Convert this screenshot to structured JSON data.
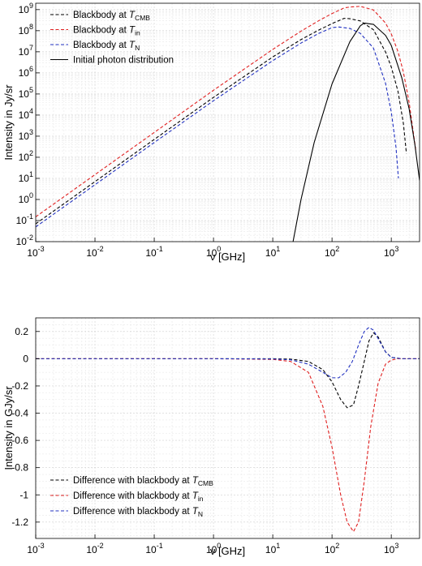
{
  "chart_data": [
    {
      "type": "line",
      "xscale": "log",
      "yscale": "log",
      "xlabel": "ν [GHz]",
      "ylabel": "Intensity in Jy/sr",
      "xlim": [
        0.001,
        3000
      ],
      "ylim": [
        0.01,
        2000000000
      ],
      "grid": true,
      "legend_position": "top-left",
      "xticks": [
        {
          "value": 0.001,
          "base": "10",
          "exp": "-3"
        },
        {
          "value": 0.01,
          "base": "10",
          "exp": "-2"
        },
        {
          "value": 0.1,
          "base": "10",
          "exp": "-1"
        },
        {
          "value": 1,
          "base": "10",
          "exp": "0"
        },
        {
          "value": 10,
          "base": "10",
          "exp": "1"
        },
        {
          "value": 100,
          "base": "10",
          "exp": "2"
        },
        {
          "value": 1000,
          "base": "10",
          "exp": "3"
        }
      ],
      "yticks": [
        {
          "value": 0.01,
          "base": "10",
          "exp": "-2"
        },
        {
          "value": 0.1,
          "base": "10",
          "exp": "-1"
        },
        {
          "value": 1,
          "base": "10",
          "exp": "0"
        },
        {
          "value": 10,
          "base": "10",
          "exp": "1"
        },
        {
          "value": 100,
          "base": "10",
          "exp": "2"
        },
        {
          "value": 1000,
          "base": "10",
          "exp": "3"
        },
        {
          "value": 10000,
          "base": "10",
          "exp": "4"
        },
        {
          "value": 100000,
          "base": "10",
          "exp": "5"
        },
        {
          "value": 1000000,
          "base": "10",
          "exp": "6"
        },
        {
          "value": 10000000,
          "base": "10",
          "exp": "7"
        },
        {
          "value": 100000000,
          "base": "10",
          "exp": "8"
        },
        {
          "value": 1000000000,
          "base": "10",
          "exp": "9"
        }
      ],
      "series": [
        {
          "name": "Blackbody at T_CMB",
          "legend_text": "Blackbody at ",
          "legend_italic": "T",
          "legend_sub": "CMB",
          "color": "#000000",
          "dash": true,
          "x": [
            0.001,
            0.01,
            0.1,
            1,
            10,
            30,
            60,
            100,
            160,
            200,
            300,
            500,
            800,
            1000,
            1300,
            1600,
            1800
          ],
          "y": [
            0.07,
            7,
            700,
            69000,
            5700000,
            38000000,
            108000000,
            217000000,
            385000000,
            370000000,
            290000000,
            111000000,
            9800000,
            1900000,
            130000,
            4000,
            150
          ]
        },
        {
          "name": "Blackbody at T_in",
          "legend_text": "Blackbody at ",
          "legend_italic": "T",
          "legend_sub": "in",
          "color": "#e02020",
          "dash": true,
          "x": [
            0.001,
            0.01,
            0.1,
            1,
            10,
            30,
            60,
            100,
            160,
            200,
            300,
            500,
            800,
            1000,
            1300,
            1600,
            2000,
            2600
          ],
          "y": [
            0.15,
            15,
            1500,
            150000,
            13000000,
            95000000,
            300000000,
            650000000,
            1200000000,
            1320000000,
            1430000000,
            960000000,
            230000000,
            70000000,
            10000000,
            1100000,
            40000,
            200
          ]
        },
        {
          "name": "Blackbody at T_N",
          "legend_text": "Blackbody at ",
          "legend_italic": "T",
          "legend_sub": "N",
          "color": "#2030c0",
          "dash": true,
          "x": [
            0.001,
            0.01,
            0.1,
            1,
            10,
            30,
            60,
            100,
            130,
            200,
            300,
            500,
            800,
            1000,
            1200,
            1320
          ],
          "y": [
            0.05,
            5,
            500,
            48000,
            3800000,
            26000000,
            75000000,
            140000000,
            150000000,
            128000000,
            75000000,
            15000000,
            320000,
            14000,
            300,
            10
          ]
        },
        {
          "name": "Initial photon distribution",
          "legend_text": "Initial photon distribution",
          "legend_italic": "",
          "legend_sub": "",
          "color": "#000000",
          "dash": false,
          "x": [
            22,
            30,
            50,
            100,
            200,
            300,
            350,
            500,
            800,
            1000,
            1500,
            2000,
            2500,
            3000
          ],
          "y": [
            0.01,
            1,
            500,
            300000,
            30000000,
            170000000,
            230000000,
            200000000,
            60000000,
            20000000,
            600000,
            20000,
            400,
            8
          ]
        }
      ]
    },
    {
      "type": "line",
      "xscale": "log",
      "yscale": "linear",
      "xlabel": "ν [GHz]",
      "ylabel": "Intensity in GJy/sr",
      "xlim": [
        0.001,
        3000
      ],
      "ylim": [
        -1.32,
        0.3
      ],
      "grid": true,
      "legend_position": "bottom-left",
      "xticks": [
        {
          "value": 0.001,
          "base": "10",
          "exp": "-3"
        },
        {
          "value": 0.01,
          "base": "10",
          "exp": "-2"
        },
        {
          "value": 0.1,
          "base": "10",
          "exp": "-1"
        },
        {
          "value": 1,
          "base": "10",
          "exp": "0"
        },
        {
          "value": 10,
          "base": "10",
          "exp": "1"
        },
        {
          "value": 100,
          "base": "10",
          "exp": "2"
        },
        {
          "value": 1000,
          "base": "10",
          "exp": "3"
        }
      ],
      "yticks": [
        {
          "value": 0.2,
          "label": "0.2"
        },
        {
          "value": 0,
          "label": "0"
        },
        {
          "value": -0.2,
          "label": "-0.2"
        },
        {
          "value": -0.4,
          "label": "-0.4"
        },
        {
          "value": -0.6,
          "label": "-0.6"
        },
        {
          "value": -0.8,
          "label": "-0.8"
        },
        {
          "value": -1,
          "label": "-1"
        },
        {
          "value": -1.2,
          "label": "-1.2"
        }
      ],
      "series": [
        {
          "name": "Difference with blackbody at T_CMB",
          "legend_text": "Difference with blackbody at ",
          "legend_italic": "T",
          "legend_sub": "CMB",
          "color": "#000000",
          "dash": true,
          "x": [
            0.001,
            1,
            10,
            20,
            40,
            70,
            100,
            140,
            180,
            230,
            280,
            350,
            420,
            500,
            600,
            800,
            1000,
            1500,
            3000
          ],
          "y": [
            0,
            0,
            0,
            -0.003,
            -0.02,
            -0.08,
            -0.17,
            -0.3,
            -0.36,
            -0.34,
            -0.2,
            -0.02,
            0.13,
            0.19,
            0.16,
            0.05,
            0.01,
            0,
            0
          ]
        },
        {
          "name": "Difference with blackbody at T_in",
          "legend_text": "Difference with blackbody at ",
          "legend_italic": "T",
          "legend_sub": "in",
          "color": "#e02020",
          "dash": true,
          "x": [
            0.001,
            1,
            10,
            20,
            40,
            70,
            100,
            140,
            180,
            230,
            280,
            350,
            450,
            600,
            800,
            1000,
            1300,
            1600,
            3000
          ],
          "y": [
            0,
            0,
            -0.005,
            -0.02,
            -0.1,
            -0.35,
            -0.65,
            -1.0,
            -1.2,
            -1.27,
            -1.2,
            -0.9,
            -0.5,
            -0.18,
            -0.04,
            -0.01,
            0,
            0,
            0
          ]
        },
        {
          "name": "Difference with blackbody at T_N",
          "legend_text": "Difference with blackbody at ",
          "legend_italic": "T",
          "legend_sub": "N",
          "color": "#2030c0",
          "dash": true,
          "x": [
            0.001,
            1,
            10,
            20,
            40,
            70,
            100,
            130,
            170,
            220,
            280,
            350,
            420,
            500,
            650,
            800,
            1000,
            1500,
            3000
          ],
          "y": [
            0,
            0,
            -0.002,
            -0.008,
            -0.04,
            -0.1,
            -0.14,
            -0.14,
            -0.1,
            -0.02,
            0.1,
            0.2,
            0.23,
            0.21,
            0.12,
            0.05,
            0.01,
            0,
            0
          ]
        }
      ]
    }
  ]
}
